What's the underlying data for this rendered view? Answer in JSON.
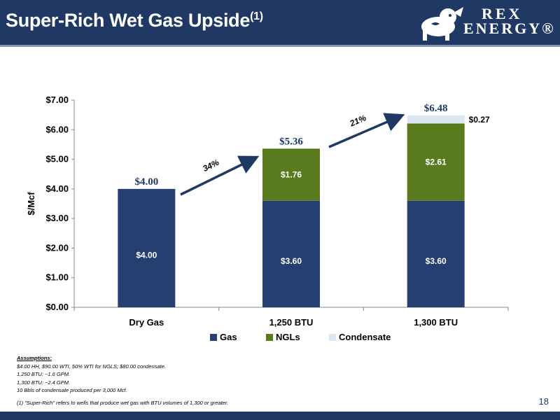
{
  "slide": {
    "title": "Super-Rich Wet Gas Upside",
    "title_sup": "(1)",
    "logo_line1": "REX",
    "logo_line2": "ENERGY®",
    "page_number": "18",
    "assumptions_heading": "Assumptions:",
    "assumptions": [
      "$4.00 HH, $90.00 WTI, 50% WTI for NGLS; $80.00 condensate.",
      "1,250 BTU: ~1.6 GPM.",
      "1,300 BTU: ~2.4 GPM.",
      "10 Bbls of condensate produced per 3,000 Mcf."
    ],
    "footnote": "(1) \"Super-Rich\" refers to wells that produce wet gas with BTU volumes of 1,300 or greater."
  },
  "colors": {
    "header": "#1f3864",
    "gas": "#243f70",
    "ngls": "#5a7a1e",
    "condensate": "#dce6f2",
    "arrow": "#1f3864"
  },
  "chart_data": {
    "type": "bar",
    "stacked": true,
    "categories": [
      "Dry Gas",
      "1,250 BTU",
      "1,300 BTU"
    ],
    "series": [
      {
        "name": "Gas",
        "values": [
          4.0,
          3.6,
          3.6
        ],
        "labels": [
          "$4.00",
          "$3.60",
          "$3.60"
        ]
      },
      {
        "name": "NGLs",
        "values": [
          0,
          1.76,
          2.61
        ],
        "labels": [
          "",
          "$1.76",
          "$2.61"
        ]
      },
      {
        "name": "Condensate",
        "values": [
          0,
          0,
          0.27
        ],
        "labels": [
          "",
          "",
          "$0.27"
        ]
      }
    ],
    "totals": [
      "$4.00",
      "$5.36",
      "$6.48"
    ],
    "growth_labels": [
      "34%",
      "21%"
    ],
    "ylabel": "$/Mcf",
    "ylim": [
      0,
      7
    ],
    "yticks": [
      0,
      1,
      2,
      3,
      4,
      5,
      6,
      7
    ],
    "ytick_labels": [
      "$0.00",
      "$1.00",
      "$2.00",
      "$3.00",
      "$4.00",
      "$5.00",
      "$6.00",
      "$7.00"
    ],
    "legend": "bottom",
    "grid": false
  }
}
